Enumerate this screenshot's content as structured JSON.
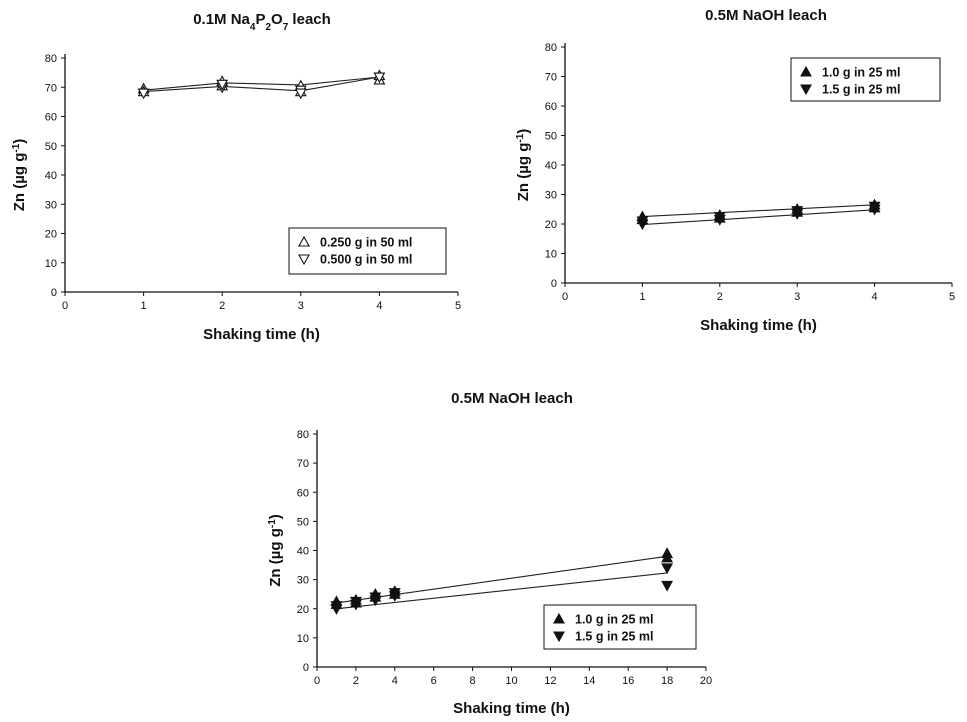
{
  "chart_data": [
    {
      "id": "p1",
      "type": "scatter",
      "title_parts": [
        "0.1M Na",
        "4",
        "P",
        "2",
        "O",
        "7",
        " leach"
      ],
      "xlabel": "Shaking time (h)",
      "ylabel_parts": [
        "Zn (µg g",
        "-1",
        ")"
      ],
      "xlim": [
        0,
        5
      ],
      "ylim": [
        0,
        80
      ],
      "xticks": [
        0,
        1,
        2,
        3,
        4,
        5
      ],
      "yticks": [
        0,
        10,
        20,
        30,
        40,
        50,
        60,
        70,
        80
      ],
      "legend_position": "bottom-right",
      "series": [
        {
          "name": "0.250 g in 50 ml",
          "marker": "triangle-up-open",
          "x": [
            1,
            2,
            3,
            4
          ],
          "points": [
            [
              1,
              69.5
            ],
            [
              1,
              68.5
            ],
            [
              2,
              72
            ],
            [
              2,
              70.5
            ],
            [
              3,
              70.5
            ],
            [
              3,
              68.5
            ],
            [
              4,
              74
            ],
            [
              4,
              72.5
            ]
          ],
          "line": [
            [
              1,
              69
            ],
            [
              2,
              71.5
            ],
            [
              3,
              70.8
            ],
            [
              4,
              73.5
            ]
          ]
        },
        {
          "name": "0.500 g in 50 ml",
          "marker": "triangle-down-open",
          "x": [
            1,
            2,
            3,
            4
          ],
          "points": [
            [
              1,
              68
            ],
            [
              2,
              70
            ],
            [
              2,
              71
            ],
            [
              3,
              69
            ],
            [
              3,
              68
            ],
            [
              4,
              73.5
            ]
          ],
          "line": [
            [
              1,
              68.5
            ],
            [
              2,
              70.3
            ],
            [
              3,
              68.8
            ],
            [
              4,
              73.5
            ]
          ]
        }
      ]
    },
    {
      "id": "p2",
      "type": "scatter",
      "title_parts": [
        "0.5M NaOH leach"
      ],
      "xlabel": "Shaking time (h)",
      "ylabel_parts": [
        "Zn (µg g",
        "-1",
        ")"
      ],
      "xlim": [
        0,
        5
      ],
      "ylim": [
        0,
        80
      ],
      "xticks": [
        0,
        1,
        2,
        3,
        4,
        5
      ],
      "yticks": [
        0,
        10,
        20,
        30,
        40,
        50,
        60,
        70,
        80
      ],
      "legend_position": "top-right",
      "series": [
        {
          "name": "1.0 g in 25 ml",
          "marker": "triangle-up-filled",
          "points": [
            [
              1,
              22.5
            ],
            [
              1,
              21.5
            ],
            [
              2,
              23
            ],
            [
              2,
              22
            ],
            [
              3,
              25
            ],
            [
              3,
              24
            ],
            [
              4,
              26.5
            ],
            [
              4,
              25.5
            ]
          ],
          "line": [
            [
              1,
              22.5
            ],
            [
              4,
              26.5
            ]
          ]
        },
        {
          "name": "1.5 g in 25 ml",
          "marker": "triangle-down-filled",
          "points": [
            [
              1,
              20
            ],
            [
              1,
              21
            ],
            [
              2,
              21.5
            ],
            [
              2,
              22.5
            ],
            [
              3,
              23.5
            ],
            [
              3,
              24.5
            ],
            [
              4,
              25
            ],
            [
              4,
              26
            ]
          ],
          "line": [
            [
              1,
              19.8
            ],
            [
              4,
              24.8
            ]
          ]
        }
      ]
    },
    {
      "id": "p3",
      "type": "scatter",
      "title_parts": [
        "0.5M NaOH leach"
      ],
      "xlabel": "Shaking time (h)",
      "ylabel_parts": [
        "Zn (µg g",
        "-1",
        ")"
      ],
      "xlim": [
        0,
        20
      ],
      "ylim": [
        0,
        80
      ],
      "xticks": [
        0,
        2,
        4,
        6,
        8,
        10,
        12,
        14,
        16,
        18,
        20
      ],
      "yticks": [
        0,
        10,
        20,
        30,
        40,
        50,
        60,
        70,
        80
      ],
      "legend_position": "bottom-right",
      "series": [
        {
          "name": "1.0 g in 25 ml",
          "marker": "triangle-up-filled",
          "points": [
            [
              1,
              22.5
            ],
            [
              1,
              21.5
            ],
            [
              2,
              23
            ],
            [
              2,
              22
            ],
            [
              3,
              25
            ],
            [
              3,
              24
            ],
            [
              4,
              26
            ],
            [
              4,
              25
            ],
            [
              18,
              39
            ],
            [
              18,
              37.5
            ]
          ],
          "line": [
            [
              1,
              22
            ],
            [
              18,
              38
            ]
          ]
        },
        {
          "name": "1.5 g in 25 ml",
          "marker": "triangle-down-filled",
          "points": [
            [
              1,
              20
            ],
            [
              1,
              21
            ],
            [
              2,
              21.5
            ],
            [
              2,
              22.5
            ],
            [
              3,
              23
            ],
            [
              3,
              24
            ],
            [
              4,
              24.5
            ],
            [
              4,
              25.5
            ],
            [
              18,
              34
            ],
            [
              18,
              28
            ]
          ],
          "line": [
            [
              1,
              20
            ],
            [
              18,
              32.3
            ]
          ]
        }
      ]
    }
  ]
}
